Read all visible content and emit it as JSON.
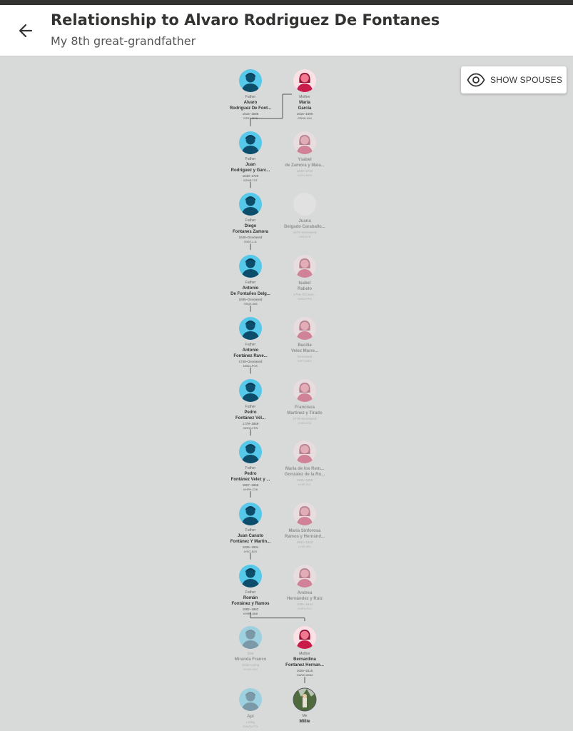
{
  "header": {
    "title": "Relationship to Alvaro Rodriguez De Fontanes",
    "subtitle": "My 8th great-grandfather"
  },
  "toolbar": {
    "show_spouses_label": "SHOW SPOUSES"
  },
  "colors": {
    "male": "#56c8ea",
    "female": "#f2788f",
    "line": "#555555"
  },
  "tree": [
    {
      "left": {
        "relation": "Father",
        "name1": "Alvaro",
        "name2": "Rodriguez De Font...",
        "years": "1616–1688",
        "id": "GZH1-MY6",
        "gender": "male",
        "faded": false
      },
      "right": {
        "relation": "Mother",
        "name1": "Maria",
        "name2": "Garcia",
        "years": "1615–1690",
        "id": "GZHB-1HX",
        "gender": "female",
        "faded": false
      }
    },
    {
      "left": {
        "relation": "Father",
        "name1": "Juan",
        "name2": "Rodriguez y Garc...",
        "years": "1648–1720",
        "id": "GZHB-TXT",
        "gender": "male",
        "faded": false
      },
      "right": {
        "relation": "",
        "name1": "Ysabel",
        "name2": "de Zamora y Mala...",
        "years": "1649–1720",
        "id": "GZH1-WK9",
        "gender": "female",
        "faded": true
      }
    },
    {
      "left": {
        "relation": "Father",
        "name1": "Diego",
        "name2": "Fontanes Zamora",
        "years": "1640–Deceased",
        "id": "G9ST-LJ1",
        "gender": "male",
        "faded": false
      },
      "right": {
        "relation": "",
        "name1": "Juana",
        "name2": "Delgado Caraballo...",
        "years": "1674–Deceased",
        "id": "L9M-ZY9",
        "gender": "none",
        "faded": true
      }
    },
    {
      "left": {
        "relation": "Father",
        "name1": "Antonio",
        "name2": "De Fontañes Delg...",
        "years": "1695–Deceased",
        "id": "G9QX-065",
        "gender": "male",
        "faded": false
      },
      "right": {
        "relation": "",
        "name1": "Isabel",
        "name2": "Rabelo",
        "years": "1705–Deceas...",
        "id": "M9N4-PF8",
        "gender": "female",
        "faded": true
      }
    },
    {
      "left": {
        "relation": "Father",
        "name1": "Antonio",
        "name2": "Fontánez Rave...",
        "years": "1748–Deceased",
        "id": "M9N4-PGK",
        "gender": "male",
        "faded": false
      },
      "right": {
        "relation": "",
        "name1": "Bacilia",
        "name2": "Velez Marre...",
        "years": "Deceased",
        "id": "GZPY-MKC",
        "gender": "female",
        "faded": true
      }
    },
    {
      "left": {
        "relation": "Father",
        "name1": "Pedro",
        "name2": "Fontánez Vél...",
        "years": "1779–1858",
        "id": "GZKQ-2TW",
        "gender": "male",
        "faded": false
      },
      "right": {
        "relation": "",
        "name1": "Francisca",
        "name2": "Martinez y Tirado",
        "years": "1778–Deceased",
        "id": "LV8S-G5N",
        "gender": "female",
        "faded": true
      }
    },
    {
      "left": {
        "relation": "Father",
        "name1": "Pedro",
        "name2": "Fontánez Velez y ...",
        "years": "1807–1858",
        "id": "KHPH-C28",
        "gender": "male",
        "faded": false
      },
      "right": {
        "relation": "",
        "name1": "Maria de los Rem...",
        "name2": "Gonzalez de la Ro...",
        "years": "1815–1858",
        "id": "LV8S-5V1",
        "gender": "female",
        "faded": true
      }
    },
    {
      "left": {
        "relation": "Father",
        "name1": "Juan Canuto",
        "name2": "Fontánez Y Martin...",
        "years": "1834–1904",
        "id": "LY5G-B2X",
        "gender": "male",
        "faded": false
      },
      "right": {
        "relation": "",
        "name1": "Maria Sinforosa",
        "name2": "Ramos y Hernánd...",
        "years": "1843–1919",
        "id": "LV8S-9B1",
        "gender": "female",
        "faded": true
      }
    },
    {
      "left": {
        "relation": "Father",
        "name1": "Román",
        "name2": "Fontánez y Ramos",
        "years": "1882–1963",
        "id": "KHRR-8N8",
        "gender": "male",
        "faded": false
      },
      "right": {
        "relation": "",
        "name1": "Andrea",
        "name2": "Hernández y Ruiz",
        "years": "1885–1944",
        "id": "KHPH-FXJ",
        "gender": "female",
        "faded": true
      }
    },
    {
      "left": {
        "relation": "Son",
        "name1": "",
        "name2": "Miranda Franco",
        "years": "1919–Living",
        "id": "GXSX-H44",
        "gender": "male",
        "faded": true
      },
      "right": {
        "relation": "Mother",
        "name1": "Bernardina",
        "name2": "Fontanez Hernan...",
        "years": "1925–2015",
        "id": "GWVD-BNM",
        "gender": "female",
        "faded": false
      }
    },
    {
      "left": {
        "relation": "",
        "name1": "",
        "name2": "Api",
        "years": "Living",
        "id": "GWVD-P7X",
        "gender": "male",
        "faded": true
      },
      "right": {
        "relation": "Me",
        "name1": "",
        "name2": "Millie",
        "years": "",
        "id": "",
        "gender": "photo",
        "faded": false
      }
    }
  ]
}
